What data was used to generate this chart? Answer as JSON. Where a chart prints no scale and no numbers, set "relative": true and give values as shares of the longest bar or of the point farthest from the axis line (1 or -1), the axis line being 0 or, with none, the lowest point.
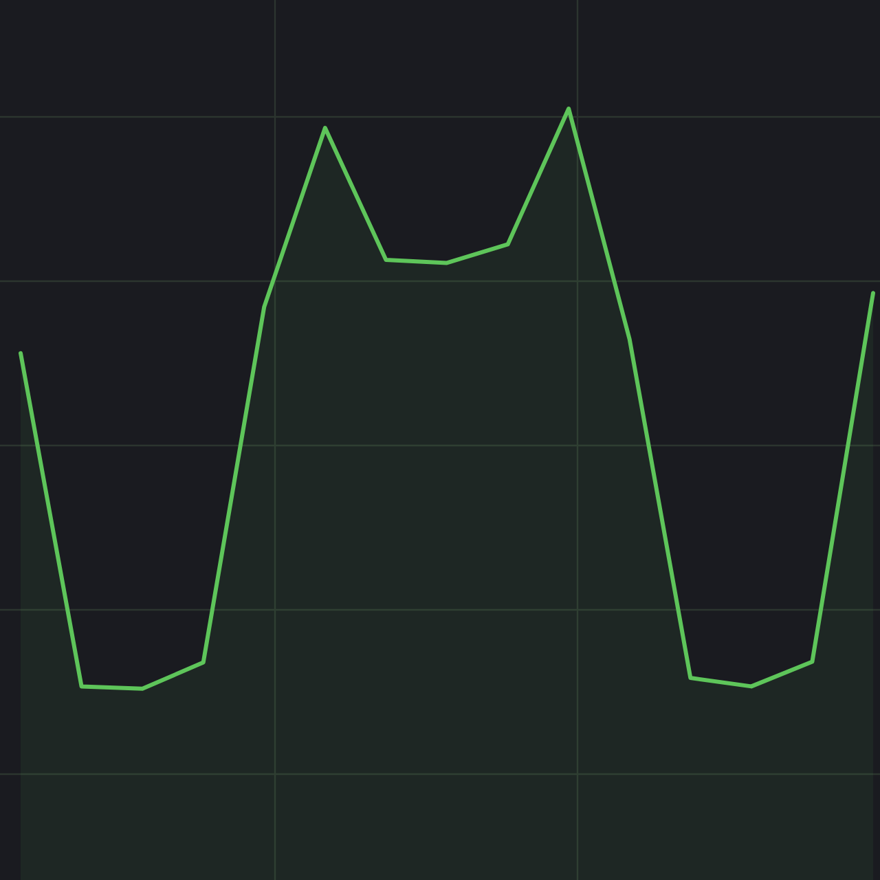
{
  "chart_data": {
    "type": "area",
    "relative": true,
    "categories": [
      null,
      null,
      null,
      null,
      null,
      null,
      null,
      null,
      null,
      null,
      null,
      null,
      null,
      null,
      null
    ],
    "values": [
      0.683,
      0.251,
      0.248,
      0.282,
      0.743,
      0.975,
      0.804,
      0.8,
      0.824,
      1,
      0.701,
      0.262,
      0.251,
      0.283,
      0.761
    ],
    "color": "#5ec55a",
    "grid": true
  }
}
